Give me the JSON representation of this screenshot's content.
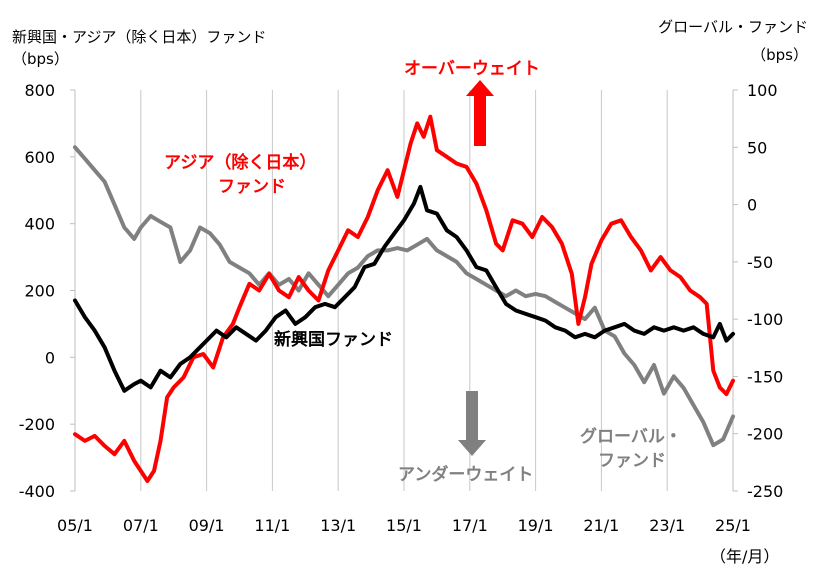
{
  "chart_data": {
    "type": "line",
    "left_axis": {
      "title_line1": "新興国・アジア（除く日本）ファンド",
      "title_line2": "（bps）",
      "ticks": [
        800,
        600,
        400,
        200,
        0,
        -200,
        -400
      ],
      "ylim": [
        -400,
        800
      ]
    },
    "right_axis": {
      "title_line1": "グローバル・ファンド",
      "title_line2": "（bps）",
      "ticks": [
        100,
        50,
        0,
        -50,
        -100,
        -150,
        -200,
        -250
      ],
      "ylim": [
        -250,
        100
      ]
    },
    "x_ticks": [
      "05/1",
      "07/1",
      "09/1",
      "11/1",
      "13/1",
      "15/1",
      "17/1",
      "19/1",
      "21/1",
      "23/1",
      "25/1"
    ],
    "x_unit": "（年/月）",
    "grid": "vertical",
    "colors": {
      "asia": "#ff0000",
      "em": "#000000",
      "global": "#808080",
      "grid": "#c8c8c8"
    },
    "annotations": {
      "overweight": "オーバーウェイト",
      "underweight": "アンダーウェイト",
      "asia_label_1": "アジア（除く日本）",
      "asia_label_2": "ファンド",
      "em_label": "新興国ファンド",
      "global_label_1": "グローバル・",
      "global_label_2": "ファンド"
    },
    "series": [
      {
        "key": "asia",
        "axis": "left",
        "points": [
          [
            2005.0,
            -230
          ],
          [
            2005.3,
            -250
          ],
          [
            2005.6,
            -235
          ],
          [
            2005.9,
            -265
          ],
          [
            2006.2,
            -290
          ],
          [
            2006.5,
            -250
          ],
          [
            2006.8,
            -310
          ],
          [
            2007.0,
            -340
          ],
          [
            2007.2,
            -370
          ],
          [
            2007.4,
            -340
          ],
          [
            2007.6,
            -250
          ],
          [
            2007.8,
            -120
          ],
          [
            2008.0,
            -90
          ],
          [
            2008.3,
            -60
          ],
          [
            2008.6,
            0
          ],
          [
            2008.9,
            10
          ],
          [
            2009.2,
            -30
          ],
          [
            2009.5,
            60
          ],
          [
            2009.8,
            100
          ],
          [
            2010.0,
            150
          ],
          [
            2010.3,
            220
          ],
          [
            2010.6,
            200
          ],
          [
            2010.9,
            250
          ],
          [
            2011.2,
            200
          ],
          [
            2011.5,
            180
          ],
          [
            2011.8,
            240
          ],
          [
            2012.1,
            200
          ],
          [
            2012.4,
            170
          ],
          [
            2012.7,
            260
          ],
          [
            2013.0,
            320
          ],
          [
            2013.3,
            380
          ],
          [
            2013.6,
            360
          ],
          [
            2013.9,
            420
          ],
          [
            2014.2,
            500
          ],
          [
            2014.5,
            560
          ],
          [
            2014.8,
            480
          ],
          [
            2015.0,
            560
          ],
          [
            2015.2,
            640
          ],
          [
            2015.4,
            700
          ],
          [
            2015.6,
            660
          ],
          [
            2015.8,
            720
          ],
          [
            2016.0,
            620
          ],
          [
            2016.3,
            600
          ],
          [
            2016.6,
            580
          ],
          [
            2016.9,
            570
          ],
          [
            2017.2,
            520
          ],
          [
            2017.5,
            440
          ],
          [
            2017.8,
            340
          ],
          [
            2018.0,
            320
          ],
          [
            2018.3,
            410
          ],
          [
            2018.6,
            400
          ],
          [
            2018.9,
            360
          ],
          [
            2019.2,
            420
          ],
          [
            2019.5,
            390
          ],
          [
            2019.8,
            340
          ],
          [
            2020.1,
            250
          ],
          [
            2020.3,
            100
          ],
          [
            2020.5,
            180
          ],
          [
            2020.7,
            280
          ],
          [
            2021.0,
            350
          ],
          [
            2021.3,
            400
          ],
          [
            2021.6,
            410
          ],
          [
            2021.9,
            360
          ],
          [
            2022.2,
            320
          ],
          [
            2022.5,
            260
          ],
          [
            2022.8,
            300
          ],
          [
            2023.1,
            260
          ],
          [
            2023.4,
            240
          ],
          [
            2023.7,
            200
          ],
          [
            2024.0,
            180
          ],
          [
            2024.2,
            160
          ],
          [
            2024.4,
            -40
          ],
          [
            2024.6,
            -90
          ],
          [
            2024.8,
            -110
          ],
          [
            2025.0,
            -70
          ]
        ]
      },
      {
        "key": "em",
        "axis": "left",
        "points": [
          [
            2005.0,
            170
          ],
          [
            2005.3,
            120
          ],
          [
            2005.6,
            80
          ],
          [
            2005.9,
            30
          ],
          [
            2006.2,
            -40
          ],
          [
            2006.5,
            -100
          ],
          [
            2006.8,
            -80
          ],
          [
            2007.0,
            -70
          ],
          [
            2007.3,
            -90
          ],
          [
            2007.6,
            -40
          ],
          [
            2007.9,
            -60
          ],
          [
            2008.2,
            -20
          ],
          [
            2008.5,
            0
          ],
          [
            2008.8,
            30
          ],
          [
            2009.0,
            50
          ],
          [
            2009.3,
            80
          ],
          [
            2009.6,
            60
          ],
          [
            2009.9,
            90
          ],
          [
            2010.2,
            70
          ],
          [
            2010.5,
            50
          ],
          [
            2010.8,
            80
          ],
          [
            2011.1,
            120
          ],
          [
            2011.4,
            140
          ],
          [
            2011.7,
            100
          ],
          [
            2012.0,
            120
          ],
          [
            2012.3,
            150
          ],
          [
            2012.6,
            160
          ],
          [
            2012.9,
            150
          ],
          [
            2013.2,
            180
          ],
          [
            2013.5,
            210
          ],
          [
            2013.8,
            270
          ],
          [
            2014.1,
            280
          ],
          [
            2014.4,
            330
          ],
          [
            2014.7,
            370
          ],
          [
            2015.0,
            410
          ],
          [
            2015.3,
            460
          ],
          [
            2015.5,
            510
          ],
          [
            2015.7,
            440
          ],
          [
            2016.0,
            430
          ],
          [
            2016.3,
            380
          ],
          [
            2016.6,
            360
          ],
          [
            2016.9,
            320
          ],
          [
            2017.2,
            270
          ],
          [
            2017.5,
            260
          ],
          [
            2017.8,
            210
          ],
          [
            2018.1,
            160
          ],
          [
            2018.4,
            140
          ],
          [
            2018.7,
            130
          ],
          [
            2019.0,
            120
          ],
          [
            2019.3,
            110
          ],
          [
            2019.6,
            90
          ],
          [
            2019.9,
            80
          ],
          [
            2020.2,
            60
          ],
          [
            2020.5,
            70
          ],
          [
            2020.8,
            60
          ],
          [
            2021.1,
            80
          ],
          [
            2021.4,
            90
          ],
          [
            2021.7,
            100
          ],
          [
            2022.0,
            80
          ],
          [
            2022.3,
            70
          ],
          [
            2022.6,
            90
          ],
          [
            2022.9,
            80
          ],
          [
            2023.2,
            90
          ],
          [
            2023.5,
            80
          ],
          [
            2023.8,
            90
          ],
          [
            2024.1,
            70
          ],
          [
            2024.4,
            60
          ],
          [
            2024.6,
            100
          ],
          [
            2024.8,
            50
          ],
          [
            2025.0,
            70
          ]
        ]
      },
      {
        "key": "global",
        "axis": "right",
        "points": [
          [
            2005.0,
            50
          ],
          [
            2005.3,
            40
          ],
          [
            2005.6,
            30
          ],
          [
            2005.9,
            20
          ],
          [
            2006.2,
            0
          ],
          [
            2006.5,
            -20
          ],
          [
            2006.8,
            -30
          ],
          [
            2007.0,
            -20
          ],
          [
            2007.3,
            -10
          ],
          [
            2007.6,
            -15
          ],
          [
            2007.9,
            -20
          ],
          [
            2008.2,
            -50
          ],
          [
            2008.5,
            -40
          ],
          [
            2008.8,
            -20
          ],
          [
            2009.1,
            -25
          ],
          [
            2009.4,
            -35
          ],
          [
            2009.7,
            -50
          ],
          [
            2010.0,
            -55
          ],
          [
            2010.3,
            -60
          ],
          [
            2010.6,
            -70
          ],
          [
            2010.9,
            -60
          ],
          [
            2011.2,
            -70
          ],
          [
            2011.5,
            -65
          ],
          [
            2011.8,
            -75
          ],
          [
            2012.1,
            -60
          ],
          [
            2012.4,
            -70
          ],
          [
            2012.7,
            -80
          ],
          [
            2013.0,
            -70
          ],
          [
            2013.3,
            -60
          ],
          [
            2013.6,
            -55
          ],
          [
            2013.9,
            -45
          ],
          [
            2014.2,
            -40
          ],
          [
            2014.5,
            -40
          ],
          [
            2014.8,
            -38
          ],
          [
            2015.1,
            -40
          ],
          [
            2015.4,
            -35
          ],
          [
            2015.7,
            -30
          ],
          [
            2016.0,
            -40
          ],
          [
            2016.3,
            -45
          ],
          [
            2016.6,
            -50
          ],
          [
            2016.9,
            -60
          ],
          [
            2017.2,
            -65
          ],
          [
            2017.5,
            -70
          ],
          [
            2017.8,
            -75
          ],
          [
            2018.1,
            -80
          ],
          [
            2018.4,
            -75
          ],
          [
            2018.7,
            -80
          ],
          [
            2019.0,
            -78
          ],
          [
            2019.3,
            -80
          ],
          [
            2019.6,
            -85
          ],
          [
            2019.9,
            -90
          ],
          [
            2020.2,
            -95
          ],
          [
            2020.5,
            -100
          ],
          [
            2020.8,
            -90
          ],
          [
            2021.1,
            -110
          ],
          [
            2021.4,
            -115
          ],
          [
            2021.7,
            -130
          ],
          [
            2022.0,
            -140
          ],
          [
            2022.3,
            -155
          ],
          [
            2022.6,
            -140
          ],
          [
            2022.9,
            -165
          ],
          [
            2023.2,
            -150
          ],
          [
            2023.5,
            -160
          ],
          [
            2023.8,
            -175
          ],
          [
            2024.1,
            -190
          ],
          [
            2024.4,
            -210
          ],
          [
            2024.7,
            -205
          ],
          [
            2025.0,
            -185
          ]
        ]
      }
    ]
  }
}
